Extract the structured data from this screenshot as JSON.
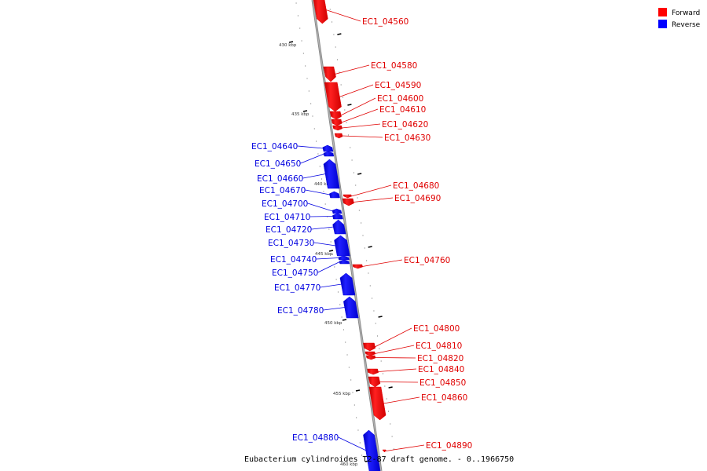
{
  "legend": [
    {
      "label": "Forward",
      "color": "#ff0000"
    },
    {
      "label": "Reverse",
      "color": "#0000ff"
    }
  ],
  "caption": "Eubacterium cylindroides T2-87 draft genome. - 0..1966750",
  "scale_ticks": [
    "430 kbp",
    "435 kbp",
    "440 kbp",
    "445 kbp",
    "450 kbp",
    "455 kbp",
    "460 kbp"
  ],
  "genes_forward": [
    "EC1_04560",
    "EC1_04580",
    "EC1_04590",
    "EC1_04600",
    "EC1_04610",
    "EC1_04620",
    "EC1_04630",
    "EC1_04680",
    "EC1_04690",
    "EC1_04760",
    "EC1_04800",
    "EC1_04810",
    "EC1_04820",
    "EC1_04840",
    "EC1_04850",
    "EC1_04860",
    "EC1_04890"
  ],
  "genes_reverse": [
    "EC1_04640",
    "EC1_04650",
    "EC1_04660",
    "EC1_04670",
    "EC1_04700",
    "EC1_04710",
    "EC1_04720",
    "EC1_04730",
    "EC1_04740",
    "EC1_04750",
    "EC1_04770",
    "EC1_04780",
    "EC1_04880"
  ]
}
